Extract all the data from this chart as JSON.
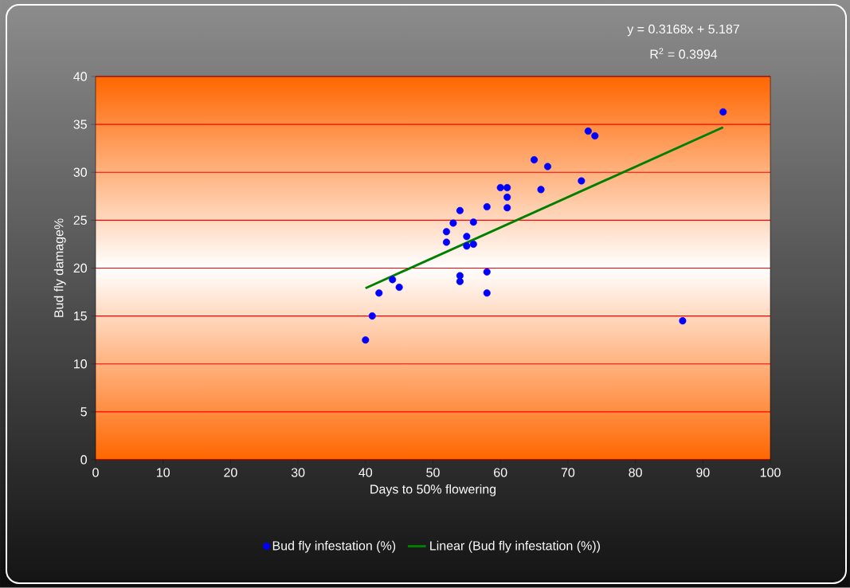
{
  "chart_data": {
    "type": "scatter",
    "xlabel": "Days to 50% flowering",
    "ylabel": "Bud fly damage%",
    "annotations": [
      "y = 0.3168x + 5.187",
      "R$^{2}$ = 0.3994"
    ],
    "xlim": [
      0,
      100
    ],
    "xticks": [
      0,
      10,
      20,
      30,
      40,
      50,
      60,
      70,
      80,
      90,
      100
    ],
    "ylim": [
      0,
      40
    ],
    "yticks": [
      0,
      5,
      10,
      15,
      20,
      25,
      30,
      35,
      40
    ],
    "grid": "y",
    "legend": "bottom",
    "series": [
      {
        "name": "Bud fly infestation (%)",
        "color": "#0000ff",
        "marker": "circle",
        "x": [
          40,
          41,
          42,
          44,
          45,
          52,
          52,
          53,
          54,
          54,
          54,
          55,
          55,
          56,
          56,
          58,
          58,
          58,
          60,
          61,
          61,
          61,
          65,
          66,
          67,
          72,
          73,
          74,
          87,
          93
        ],
        "values": [
          12.5,
          15.0,
          17.4,
          18.8,
          18.0,
          22.7,
          23.8,
          24.7,
          26.0,
          19.2,
          18.6,
          23.3,
          22.3,
          24.8,
          22.5,
          26.4,
          19.6,
          17.4,
          28.4,
          28.4,
          27.4,
          26.3,
          31.3,
          28.2,
          30.6,
          29.1,
          34.3,
          33.8,
          14.5,
          36.3
        ]
      },
      {
        "name": "Linear (Bud fly infestation (%))",
        "type": "line",
        "color": "#008000",
        "marker": "none",
        "line_style": "solid",
        "x": [
          40,
          93
        ],
        "values": [
          17.9,
          34.7
        ]
      }
    ]
  }
}
